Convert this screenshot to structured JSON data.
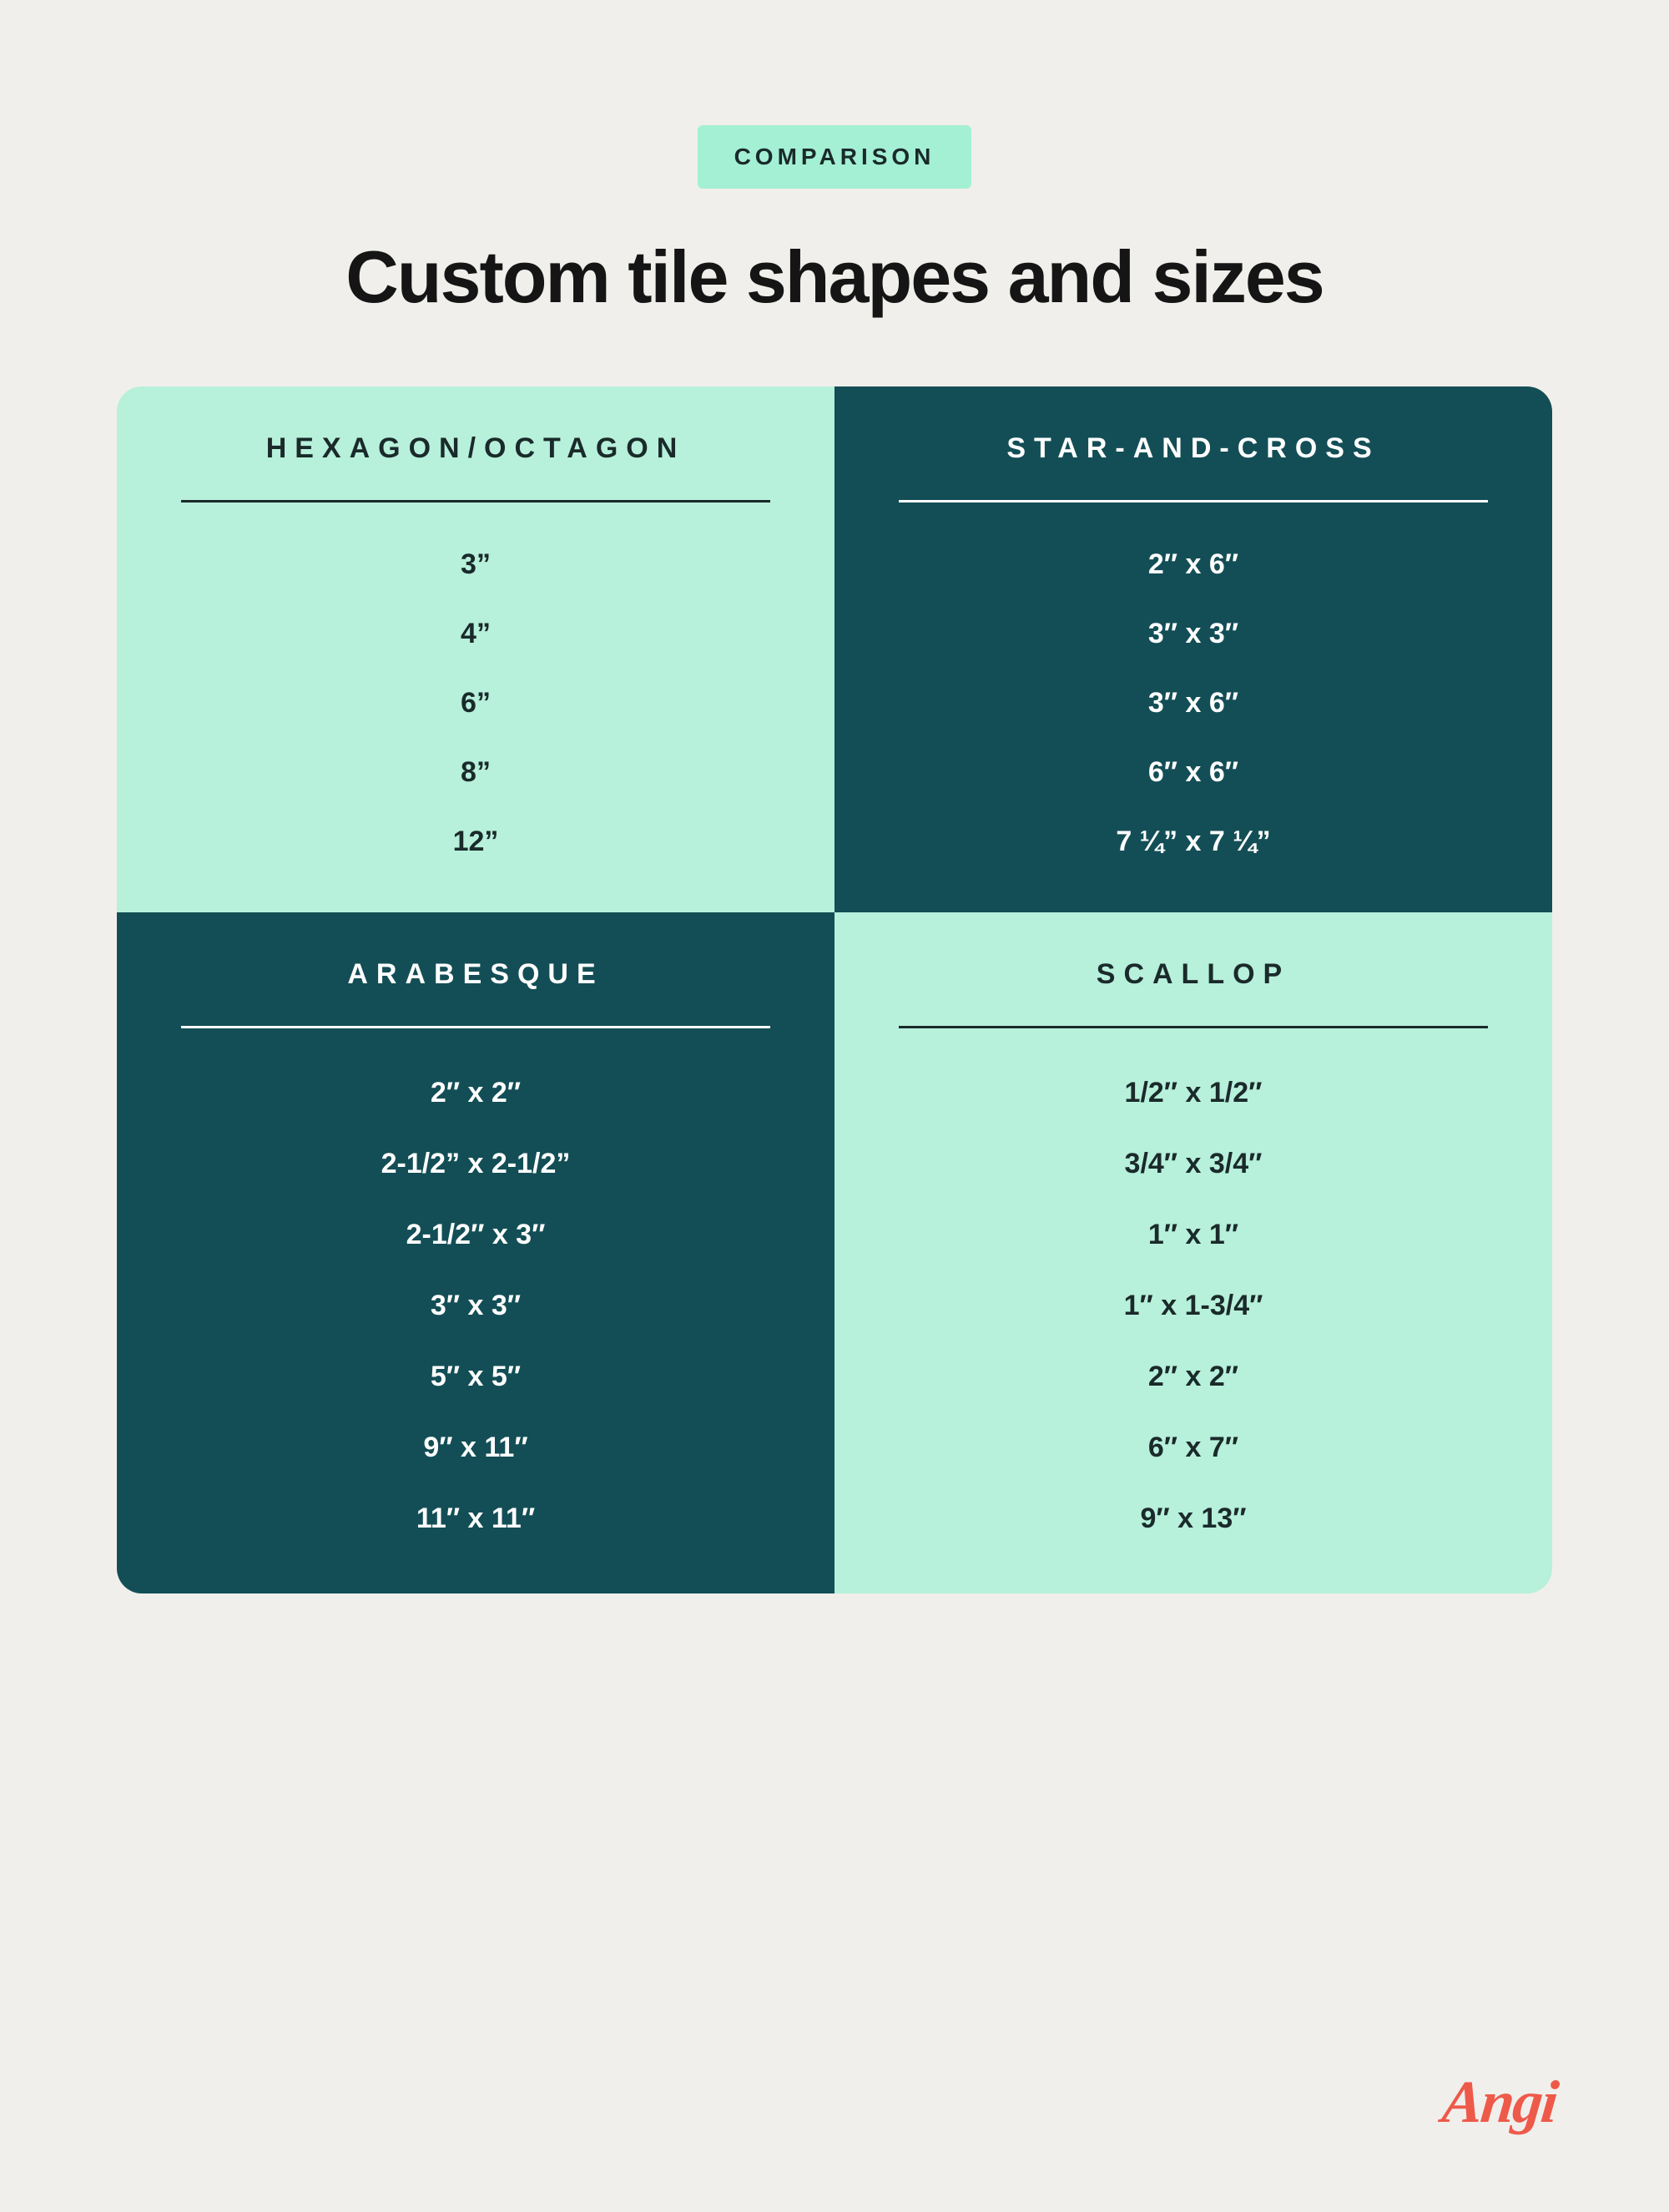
{
  "badge": "COMPARISON",
  "title": "Custom tile shapes and sizes",
  "colors": {
    "page_bg": "#f1efeb",
    "light_bg": "#b7f0db",
    "dark_bg": "#134e56",
    "badge_bg": "#a4f0d5",
    "text_dark": "#1a2a2a",
    "text_light": "#ffffff",
    "logo": "#ee5a4a"
  },
  "cells": [
    {
      "header": "HEXAGON/OCTAGON",
      "tone": "light",
      "values": [
        "3”",
        "4”",
        "6”",
        "8”",
        "12”"
      ]
    },
    {
      "header": "STAR-AND-CROSS",
      "tone": "dark",
      "values": [
        "2″ x 6″",
        "3″ x 3″",
        "3″ x 6″",
        "6″ x 6″",
        "7 ¼” x 7 ¼”"
      ]
    },
    {
      "header": "ARABESQUE",
      "tone": "dark",
      "values": [
        "2″ x 2″",
        "2-1/2” x 2-1/2”",
        "2-1/2″ x 3″",
        "3″ x 3″",
        "5″ x 5″",
        "9″ x 11″",
        "11″ x 11″"
      ]
    },
    {
      "header": "SCALLOP",
      "tone": "light",
      "values": [
        "1/2″ x 1/2″",
        "3/4″ x 3/4″",
        "1″ x 1″",
        "1″ x 1-3/4″",
        "2″ x 2″",
        "6″ x 7″",
        "9″ x 13″"
      ]
    }
  ],
  "logo": "Angi"
}
